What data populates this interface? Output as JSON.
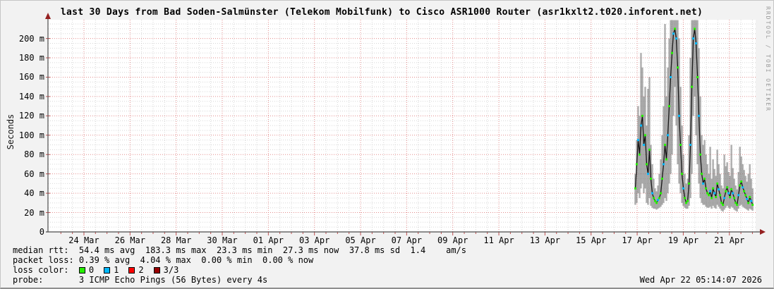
{
  "header": {
    "title": "last 30 Days from Bad Soden-Salmünster (Telekom Mobilfunk) to Cisco ASR1000 Router (asr1kxlt2.t020.inforent.net)"
  },
  "watermark": "RRDTOOL / TOBI OETIKER",
  "timestamp": "Wed Apr 22 05:14:07 2026",
  "stats": {
    "median_rtt_line": "median rtt:  54.4 ms avg  183.3 ms max  23.3 ms min  27.3 ms now  37.8 ms sd  1.4    am/s",
    "packet_loss_line": "packet loss: 0.39 % avg  4.04 % max  0.00 % min  0.00 % now",
    "loss_color_label": "loss color:  ",
    "probe_line": "probe:       3 ICMP Echo Pings (56 Bytes) every 4s"
  },
  "loss_legend": {
    "items": [
      {
        "value": "0",
        "color": "#26f000"
      },
      {
        "value": "1",
        "color": "#00b8ff"
      },
      {
        "value": "2",
        "color": "#ff0000"
      },
      {
        "value": "3/3",
        "color": "#990000"
      }
    ]
  },
  "colors": {
    "plot_bg": "#ffffff",
    "minor_grid": "#bdbdbd",
    "major_grid": "#e08080",
    "axis": "#4d4d4d",
    "arrow": "#952020",
    "tick": "#c05050",
    "smoke": "#7d7d7d",
    "median_line": "#161616"
  },
  "chart_data": {
    "type": "area",
    "title": "last 30 Days from Bad Soden-Salmünster (Telekom Mobilfunk) to Cisco ASR1000 Router (asr1kxlt2.t020.inforent.net)",
    "ylabel": "Seconds",
    "unit": "ms",
    "ylim_ms": [
      0,
      219
    ],
    "y_ticks": [
      {
        "value": 0,
        "label": "0"
      },
      {
        "value": 20,
        "label": "20 m"
      },
      {
        "value": 40,
        "label": "40 m"
      },
      {
        "value": 60,
        "label": "60 m"
      },
      {
        "value": 80,
        "label": "80 m"
      },
      {
        "value": 100,
        "label": "100 m"
      },
      {
        "value": 120,
        "label": "120 m"
      },
      {
        "value": 140,
        "label": "140 m"
      },
      {
        "value": 160,
        "label": "160 m"
      },
      {
        "value": 180,
        "label": "180 m"
      },
      {
        "value": 200,
        "label": "200 m"
      }
    ],
    "x_ticks": [
      "24 Mar",
      "26 Mar",
      "28 Mar",
      "30 Mar",
      "01 Apr",
      "03 Apr",
      "05 Apr",
      "07 Apr",
      "09 Apr",
      "11 Apr",
      "13 Apr",
      "15 Apr",
      "17 Apr",
      "19 Apr",
      "21 Apr"
    ],
    "axis_days": 30.7,
    "first_tick_day": 1.56,
    "tick_interval_days": 2,
    "minor_tick_days": 0.5,
    "grid": true,
    "series": {
      "name": "median rtt with min-max smoke band",
      "start_day": 25.48,
      "step_day": 0.0613,
      "note": "points are [median_ms, min_ms, max_ms, loss_count]; no data before start_day",
      "points": [
        [
          45,
          28,
          60,
          0
        ],
        [
          70,
          30,
          95,
          0
        ],
        [
          95,
          40,
          130,
          1
        ],
        [
          80,
          35,
          120,
          0
        ],
        [
          110,
          45,
          185,
          1
        ],
        [
          120,
          50,
          170,
          0
        ],
        [
          90,
          40,
          140,
          1
        ],
        [
          100,
          45,
          150,
          0
        ],
        [
          70,
          30,
          110,
          0
        ],
        [
          60,
          28,
          148,
          1
        ],
        [
          85,
          35,
          160,
          0
        ],
        [
          55,
          27,
          90,
          0
        ],
        [
          40,
          25,
          70,
          1
        ],
        [
          35,
          24,
          55,
          0
        ],
        [
          32,
          24,
          45,
          0
        ],
        [
          30,
          23,
          42,
          0
        ],
        [
          33,
          24,
          48,
          1
        ],
        [
          35,
          25,
          60,
          0
        ],
        [
          40,
          26,
          75,
          0
        ],
        [
          55,
          28,
          100,
          0
        ],
        [
          70,
          30,
          130,
          1
        ],
        [
          90,
          35,
          215,
          0
        ],
        [
          75,
          32,
          140,
          0
        ],
        [
          100,
          40,
          170,
          1
        ],
        [
          130,
          50,
          200,
          0
        ],
        [
          160,
          60,
          219,
          1
        ],
        [
          185,
          80,
          219,
          0
        ],
        [
          205,
          120,
          219,
          1
        ],
        [
          210,
          150,
          219,
          0
        ],
        [
          200,
          110,
          219,
          1
        ],
        [
          170,
          70,
          219,
          0
        ],
        [
          120,
          50,
          200,
          1
        ],
        [
          90,
          40,
          150,
          0
        ],
        [
          60,
          30,
          110,
          0
        ],
        [
          45,
          27,
          80,
          1
        ],
        [
          35,
          25,
          60,
          0
        ],
        [
          30,
          24,
          50,
          0
        ],
        [
          32,
          24,
          55,
          0
        ],
        [
          50,
          27,
          100,
          0
        ],
        [
          90,
          35,
          180,
          1
        ],
        [
          150,
          60,
          219,
          0
        ],
        [
          200,
          120,
          219,
          1
        ],
        [
          210,
          140,
          219,
          0
        ],
        [
          195,
          100,
          219,
          1
        ],
        [
          160,
          70,
          219,
          0
        ],
        [
          120,
          50,
          190,
          1
        ],
        [
          80,
          35,
          140,
          0
        ],
        [
          60,
          30,
          100,
          0
        ],
        [
          50,
          28,
          90,
          1
        ],
        [
          55,
          28,
          95,
          0
        ],
        [
          45,
          26,
          80,
          0
        ],
        [
          40,
          25,
          70,
          0
        ],
        [
          38,
          25,
          60,
          0
        ],
        [
          42,
          26,
          88,
          1
        ],
        [
          35,
          24,
          55,
          0
        ],
        [
          45,
          27,
          75,
          0
        ],
        [
          40,
          25,
          65,
          1
        ],
        [
          36,
          24,
          58,
          0
        ],
        [
          50,
          28,
          85,
          0
        ],
        [
          44,
          26,
          70,
          1
        ],
        [
          38,
          24,
          60,
          0
        ],
        [
          30,
          22,
          48,
          0
        ],
        [
          28,
          21,
          45,
          0
        ],
        [
          35,
          23,
          80,
          1
        ],
        [
          42,
          25,
          68,
          0
        ],
        [
          46,
          27,
          72,
          0
        ],
        [
          40,
          25,
          62,
          1
        ],
        [
          36,
          24,
          58,
          0
        ],
        [
          44,
          26,
          90,
          0
        ],
        [
          40,
          25,
          66,
          1
        ],
        [
          35,
          23,
          55,
          0
        ],
        [
          30,
          22,
          48,
          0
        ],
        [
          28,
          21,
          44,
          0
        ],
        [
          38,
          24,
          62,
          1
        ],
        [
          48,
          27,
          88,
          0
        ],
        [
          52,
          28,
          78,
          0
        ],
        [
          46,
          26,
          70,
          1
        ],
        [
          42,
          25,
          64,
          0
        ],
        [
          38,
          24,
          58,
          0
        ],
        [
          34,
          23,
          52,
          1
        ],
        [
          30,
          22,
          60,
          0
        ],
        [
          36,
          24,
          70,
          0
        ],
        [
          32,
          23,
          55,
          1
        ],
        [
          28,
          22,
          45,
          0
        ]
      ]
    }
  }
}
